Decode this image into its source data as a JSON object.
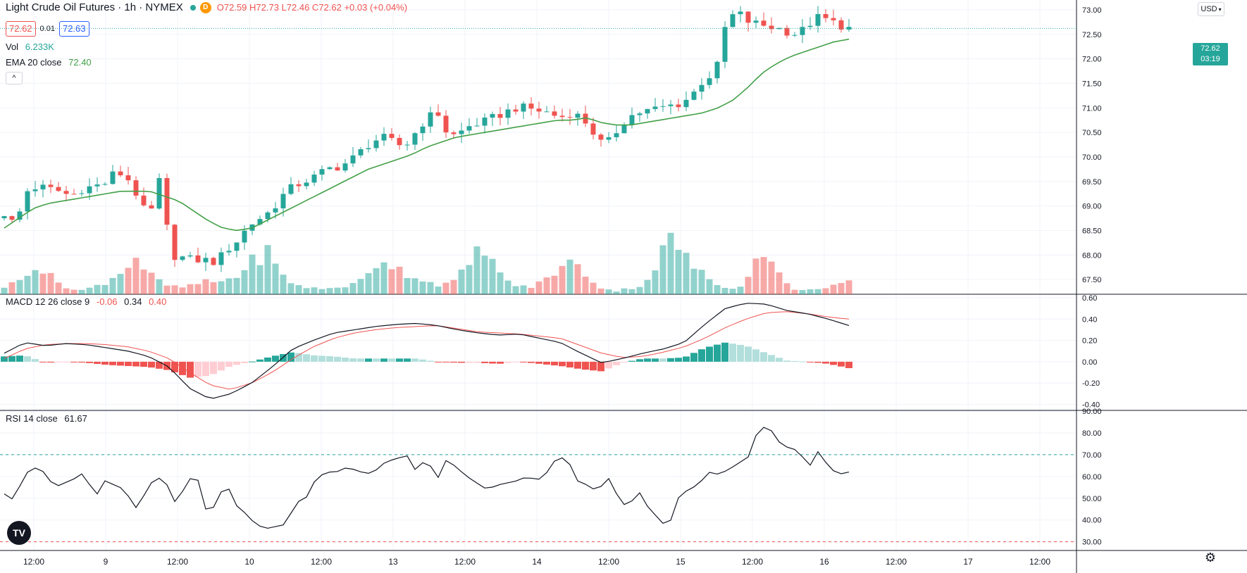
{
  "header": {
    "symbol": "Light Crude Oil Futures · 1h · NYMEX",
    "badge": "D",
    "ohlc_text": "O72.59  H72.73  L72.46  C72.62  +0.03 (+0.04%)",
    "bid": "72.62",
    "spread": "0.01",
    "ask": "72.63"
  },
  "indicators": {
    "vol_label": "Vol",
    "vol_value": "6.233K",
    "ema_label": "EMA 20 close",
    "ema_value": "72.40",
    "collapse_icon": "^",
    "macd_label": "MACD 12 26 close 9",
    "macd_hist": "-0.06",
    "macd_line": "0.34",
    "macd_signal": "0.40",
    "rsi_label": "RSI 14 close",
    "rsi_value": "61.67"
  },
  "toolbar": {
    "currency": "USD",
    "logo_text": "TV"
  },
  "last_price": {
    "price": "72.62",
    "countdown": "03:19",
    "color": "#26a69a"
  },
  "colors": {
    "up": "#26a69a",
    "down": "#ef5350",
    "ema": "#43a047",
    "macd": "#131722",
    "signal": "#ef5350",
    "rsi": "#131722"
  },
  "chart_data": {
    "type": "candlestick",
    "title": "Light Crude Oil Futures · 1h · NYMEX",
    "x_ticks": [
      "12:00",
      "9",
      "12:00",
      "10",
      "12:00",
      "13",
      "12:00",
      "14",
      "12:00",
      "15",
      "12:00",
      "16",
      "12:00",
      "17",
      "12:00"
    ],
    "price_axis": {
      "ylim": [
        67.2,
        73.2
      ],
      "ticks": [
        "73.00",
        "72.50",
        "72.00",
        "71.50",
        "71.00",
        "70.50",
        "70.00",
        "69.50",
        "69.00",
        "68.50",
        "68.00",
        "67.50"
      ]
    },
    "macd_axis": {
      "ylim": [
        -0.45,
        0.62
      ],
      "ticks": [
        "0.60",
        "0.40",
        "0.20",
        "0.00",
        "-0.20",
        "-0.40"
      ]
    },
    "rsi_axis": {
      "ylim": [
        26,
        90
      ],
      "ticks": [
        "90.00",
        "80.00",
        "70.00",
        "60.00",
        "50.00",
        "40.00",
        "30.00"
      ],
      "upper_band": 70,
      "lower_band": 30
    },
    "price_waypoints": [
      68.85,
      68.6,
      69.3,
      69.4,
      69.35,
      69.3,
      69.2,
      69.35,
      69.4,
      69.45,
      69.7,
      69.6,
      69.2,
      68.7,
      69.55,
      68.0,
      67.95,
      67.9,
      67.9,
      67.85,
      68.1,
      68.3,
      68.6,
      68.75,
      68.9,
      69.2,
      69.4,
      69.5,
      69.6,
      69.75,
      69.8,
      69.9,
      70.1,
      70.3,
      70.4,
      70.3,
      70.2,
      70.5,
      70.8,
      70.9,
      70.4,
      70.5,
      70.65,
      70.7,
      70.8,
      70.9,
      71.0,
      71.0,
      70.95,
      70.9,
      70.8,
      70.9,
      70.8,
      70.5,
      70.2,
      70.5,
      70.8,
      70.9,
      70.95,
      71.0,
      71.05,
      71.1,
      71.3,
      71.6,
      71.7,
      72.8,
      72.95,
      72.75,
      72.7,
      72.65,
      72.6,
      72.5,
      72.6,
      72.85,
      72.8,
      72.7,
      72.62
    ],
    "ema_waypoints": [
      68.55,
      68.75,
      68.95,
      69.05,
      69.1,
      69.15,
      69.2,
      69.25,
      69.3,
      69.3,
      69.3,
      69.2,
      69.1,
      68.9,
      68.7,
      68.55,
      68.5,
      68.55,
      68.7,
      68.85,
      69.0,
      69.15,
      69.3,
      69.45,
      69.6,
      69.75,
      69.85,
      69.95,
      70.05,
      70.2,
      70.3,
      70.4,
      70.45,
      70.5,
      70.55,
      70.6,
      70.65,
      70.7,
      70.75,
      70.75,
      70.8,
      70.7,
      70.65,
      70.65,
      70.7,
      70.75,
      70.8,
      70.85,
      70.9,
      71.0,
      71.15,
      71.4,
      71.7,
      71.9,
      72.05,
      72.15,
      72.25,
      72.35,
      72.4
    ],
    "volume_waypoints": [
      0.12,
      0.2,
      0.5,
      0.3,
      0.15,
      0.05,
      0.1,
      0.2,
      0.35,
      0.6,
      0.3,
      0.15,
      0.1,
      0.15,
      0.2,
      0.2,
      0.3,
      0.5,
      0.7,
      0.3,
      0.15,
      0.1,
      0.08,
      0.12,
      0.15,
      0.3,
      0.6,
      0.4,
      0.3,
      0.2,
      0.15,
      0.2,
      0.5,
      0.8,
      0.3,
      0.15,
      0.1,
      0.2,
      0.4,
      0.5,
      0.3,
      0.1,
      0.05,
      0.1,
      0.15,
      0.6,
      0.9,
      0.5,
      0.3,
      0.15,
      0.1,
      0.2,
      0.8,
      0.35,
      0.1,
      0.05,
      0.1,
      0.15,
      0.2
    ],
    "macd_waypoints": [
      0.08,
      0.18,
      0.15,
      0.17,
      0.16,
      0.13,
      0.1,
      0.05,
      -0.05,
      -0.25,
      -0.35,
      -0.3,
      -0.2,
      -0.05,
      0.12,
      0.2,
      0.27,
      0.3,
      0.33,
      0.35,
      0.36,
      0.34,
      0.3,
      0.27,
      0.25,
      0.26,
      0.22,
      0.18,
      0.08,
      -0.01,
      0.03,
      0.08,
      0.12,
      0.18,
      0.35,
      0.5,
      0.55,
      0.54,
      0.48,
      0.45,
      0.4,
      0.34
    ],
    "signal_waypoints": [
      0.03,
      0.12,
      0.16,
      0.17,
      0.17,
      0.16,
      0.14,
      0.1,
      0.03,
      -0.1,
      -0.22,
      -0.26,
      -0.2,
      -0.1,
      0.03,
      0.14,
      0.22,
      0.27,
      0.3,
      0.32,
      0.33,
      0.34,
      0.31,
      0.28,
      0.27,
      0.26,
      0.24,
      0.22,
      0.15,
      0.08,
      0.04,
      0.05,
      0.09,
      0.14,
      0.22,
      0.32,
      0.4,
      0.46,
      0.47,
      0.45,
      0.42,
      0.4
    ],
    "rsi_waypoints": [
      52,
      49,
      61,
      64,
      62,
      55,
      57,
      59,
      62,
      50,
      58,
      56,
      54,
      45,
      52,
      60,
      58,
      48,
      55,
      63,
      45,
      46,
      58,
      47,
      43,
      38,
      36,
      37,
      38,
      48,
      50,
      59,
      62,
      62,
      64,
      63,
      61,
      63,
      67,
      68,
      70,
      62,
      69,
      58,
      68,
      64,
      60,
      57,
      54,
      56,
      57,
      58,
      60,
      58,
      62,
      69,
      68,
      58,
      56,
      53,
      60,
      51,
      45,
      54,
      46,
      41,
      36,
      50,
      54,
      56,
      62,
      61,
      63,
      66,
      69,
      82,
      83,
      76,
      73,
      72,
      64,
      72,
      64,
      61,
      62
    ]
  }
}
